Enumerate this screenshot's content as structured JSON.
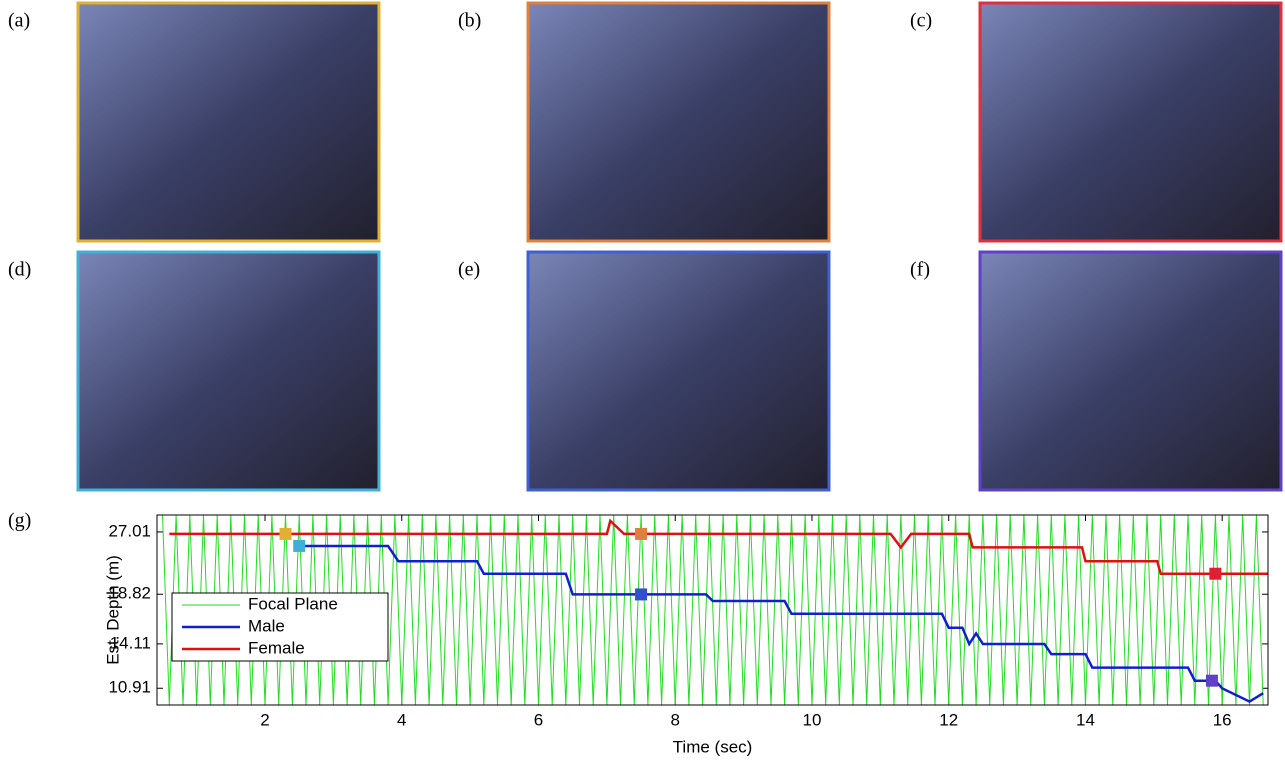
{
  "panels": [
    {
      "label": "(a)",
      "border": "#e0b030"
    },
    {
      "label": "(b)",
      "border": "#e08040"
    },
    {
      "label": "(c)",
      "border": "#e03040"
    },
    {
      "label": "(d)",
      "border": "#40b0d8"
    },
    {
      "label": "(e)",
      "border": "#4060d0"
    },
    {
      "label": "(f)",
      "border": "#6040c8"
    }
  ],
  "chart_data": {
    "type": "line",
    "panel_label": "(g)",
    "xlabel": "Time (sec)",
    "ylabel": "Est. Depth (m)",
    "xlim": [
      0.42,
      16.67
    ],
    "xticks": [
      2,
      4,
      6,
      8,
      10,
      12,
      14,
      16
    ],
    "ylim": [
      9.9,
      29.8
    ],
    "yticks": [
      10.91,
      14.11,
      18.82,
      27.01
    ],
    "log_scale_y": true,
    "legend": "lower left",
    "series": [
      {
        "name": "Focal Plane",
        "color": "#22dd22",
        "width": 1,
        "x": [
          0.5,
          0.6,
          0.7,
          0.8,
          0.9,
          1.0,
          1.1,
          1.2,
          1.3,
          1.4,
          1.5,
          1.6,
          1.7,
          1.8,
          1.9,
          2.0,
          2.1,
          2.2,
          2.3,
          2.4,
          2.5,
          2.6,
          2.7,
          2.8,
          2.9,
          3.0,
          3.1,
          3.2,
          3.3,
          3.4,
          3.5,
          3.6,
          3.7,
          3.8,
          3.9,
          4.0,
          4.1,
          4.2,
          4.3,
          4.4,
          4.5,
          4.6,
          4.7,
          4.8,
          4.9,
          5.0,
          5.1,
          5.2,
          5.3,
          5.4,
          5.5,
          5.6,
          5.7,
          5.8,
          5.9,
          6.0,
          6.1,
          6.2,
          6.3,
          6.4,
          6.5,
          6.6,
          6.7,
          6.8,
          6.9,
          7.0,
          7.1,
          7.2,
          7.3,
          7.4,
          7.5,
          7.6,
          7.7,
          7.8,
          7.9,
          8.0,
          8.1,
          8.2,
          8.3,
          8.4,
          8.5,
          8.6,
          8.7,
          8.8,
          8.9,
          9.0,
          9.1,
          9.2,
          9.3,
          9.4,
          9.5,
          9.6,
          9.7,
          9.8,
          9.9,
          10.0,
          10.1,
          10.2,
          10.3,
          10.4,
          10.5,
          10.6,
          10.7,
          10.8,
          10.9,
          11.0,
          11.1,
          11.2,
          11.3,
          11.4,
          11.5,
          11.6,
          11.7,
          11.8,
          11.9,
          12.0,
          12.1,
          12.2,
          12.3,
          12.4,
          12.5,
          12.6,
          12.7,
          12.8,
          12.9,
          13.0,
          13.1,
          13.2,
          13.3,
          13.4,
          13.5,
          13.6,
          13.7,
          13.8,
          13.9,
          14.0,
          14.1,
          14.2,
          14.3,
          14.4,
          14.5,
          14.6,
          14.7,
          14.8,
          14.9,
          15.0,
          15.1,
          15.2,
          15.3,
          15.4,
          15.5,
          15.6,
          15.7,
          15.8,
          15.9,
          16.0,
          16.1,
          16.2,
          16.3,
          16.4,
          16.5,
          16.6
        ],
        "values": [
          29.8,
          9.9,
          29.8,
          9.9,
          29.8,
          9.9,
          29.8,
          9.9,
          29.8,
          9.9,
          29.8,
          9.9,
          29.8,
          9.9,
          29.8,
          9.9,
          29.8,
          9.9,
          29.8,
          9.9,
          29.8,
          9.9,
          29.8,
          9.9,
          29.8,
          9.9,
          29.8,
          9.9,
          29.8,
          9.9,
          29.8,
          9.9,
          29.8,
          9.9,
          29.8,
          9.9,
          29.8,
          9.9,
          29.8,
          9.9,
          29.8,
          9.9,
          29.8,
          9.9,
          29.8,
          9.9,
          29.8,
          9.9,
          29.8,
          9.9,
          29.8,
          9.9,
          29.8,
          9.9,
          29.8,
          9.9,
          29.8,
          9.9,
          29.8,
          9.9,
          29.8,
          9.9,
          29.8,
          9.9,
          29.8,
          9.9,
          29.8,
          9.9,
          29.8,
          9.9,
          29.8,
          9.9,
          29.8,
          9.9,
          29.8,
          9.9,
          29.8,
          9.9,
          29.8,
          9.9,
          29.8,
          9.9,
          29.8,
          9.9,
          29.8,
          9.9,
          29.8,
          9.9,
          29.8,
          9.9,
          29.8,
          9.9,
          29.8,
          9.9,
          29.8,
          9.9,
          29.8,
          9.9,
          29.8,
          9.9,
          29.8,
          9.9,
          29.8,
          9.9,
          29.8,
          9.9,
          29.8,
          9.9,
          29.8,
          9.9,
          29.8,
          9.9,
          29.8,
          9.9,
          29.8,
          9.9,
          29.8,
          9.9,
          29.8,
          9.9,
          29.8,
          9.9,
          29.8,
          9.9,
          29.8,
          9.9,
          29.8,
          9.9,
          29.8,
          9.9,
          29.8,
          9.9,
          29.8,
          9.9,
          29.8,
          9.9,
          29.8,
          9.9,
          29.8,
          9.9,
          29.8,
          9.9,
          29.8,
          9.9,
          29.8,
          9.9,
          29.8,
          9.9,
          29.8,
          9.9,
          29.8,
          9.9,
          29.8,
          9.9,
          29.8,
          9.9,
          29.8,
          9.9,
          29.8,
          9.9,
          29.8,
          9.9
        ]
      },
      {
        "name": "Male",
        "color": "#1020d0",
        "width": 2.5,
        "x": [
          2.5,
          3.8,
          3.95,
          5.1,
          5.2,
          6.4,
          6.5,
          8.45,
          8.55,
          9.6,
          9.7,
          11.9,
          12.0,
          12.2,
          12.3,
          12.4,
          12.5,
          13.4,
          13.5,
          14.0,
          14.1,
          15.5,
          15.6,
          15.9,
          16.0,
          16.3,
          16.4,
          16.6
        ],
        "values": [
          24.9,
          24.9,
          22.8,
          22.8,
          21.2,
          21.2,
          18.8,
          18.8,
          18.1,
          18.1,
          16.8,
          16.8,
          15.5,
          15.5,
          14.1,
          15.0,
          14.1,
          14.1,
          13.3,
          13.3,
          12.3,
          12.3,
          11.4,
          11.4,
          10.9,
          10.3,
          10.1,
          10.6
        ]
      },
      {
        "name": "Female",
        "color": "#e01010",
        "width": 2.5,
        "x": [
          0.6,
          7.0,
          7.05,
          7.25,
          11.15,
          11.3,
          11.45,
          12.3,
          12.35,
          13.95,
          14.0,
          15.05,
          15.1,
          16.67
        ],
        "values": [
          26.7,
          26.7,
          28.8,
          26.7,
          26.7,
          24.7,
          26.7,
          26.7,
          24.7,
          24.7,
          22.8,
          22.8,
          21.2,
          21.2
        ]
      }
    ],
    "markers": {
      "x": [
        2.3,
        2.5,
        7.5,
        7.5,
        15.9,
        15.85
      ],
      "values": [
        26.7,
        24.9,
        26.7,
        18.8,
        21.2,
        11.4
      ],
      "colors": [
        "#e0b030",
        "#40b0d8",
        "#e08040",
        "#3050d0",
        "#e02030",
        "#6040c8"
      ]
    }
  }
}
